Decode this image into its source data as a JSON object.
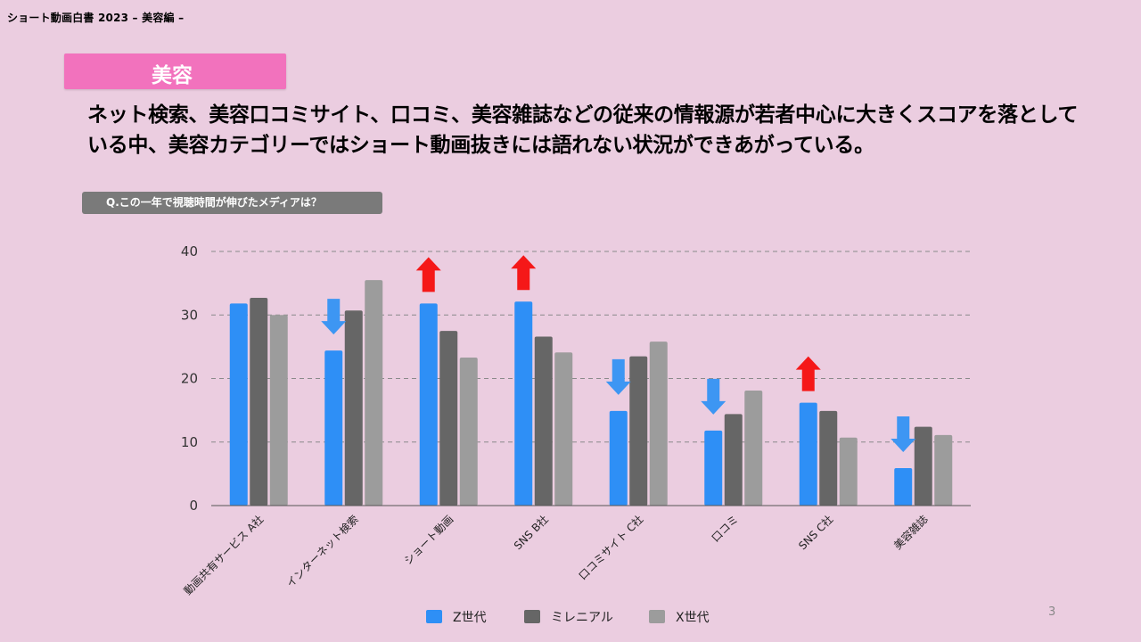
{
  "header": {
    "title": "ショート動画白書 2023 – 美容編 –"
  },
  "category_badge": {
    "label": "美容"
  },
  "headline": "ネット検索、美容口コミサイト、口コミ、美容雑誌などの従来の情報源が若者中心に大きくスコアを落としている中、美容カテゴリーではショート動画抜きには語れない状況ができあがっている。",
  "question": "Q.この一年で視聴時間が伸びたメディアは？",
  "page_number": "3",
  "colors": {
    "z": "#2e8ff6",
    "millennial": "#666666",
    "x": "#9c9c9c",
    "up_arrow": "#f51818",
    "down_arrow": "#3d96f3"
  },
  "chart_data": {
    "type": "bar",
    "title": "",
    "xlabel": "",
    "ylabel": "",
    "ylim": [
      0,
      40
    ],
    "yticks": [
      0,
      10,
      20,
      30,
      40
    ],
    "grid": true,
    "legend_position": "bottom",
    "categories": [
      "動画共有サービス A社",
      "インターネット検索",
      "ショート動画",
      "SNS B社",
      "口コミサイト C社",
      "口コミ",
      "SNS C社",
      "美容雑誌"
    ],
    "series": [
      {
        "name": "Z世代",
        "values": [
          31.8,
          24.4,
          31.8,
          32.1,
          14.9,
          11.8,
          16.2,
          5.9
        ]
      },
      {
        "name": "ミレニアル",
        "values": [
          32.7,
          30.7,
          27.5,
          26.6,
          23.5,
          14.4,
          14.9,
          12.4
        ]
      },
      {
        "name": "X世代",
        "values": [
          30.0,
          35.5,
          23.3,
          24.1,
          25.8,
          18.1,
          10.7,
          11.1
        ]
      }
    ],
    "trend_arrows": [
      "none",
      "down",
      "up",
      "up",
      "down",
      "down",
      "up",
      "down"
    ]
  }
}
